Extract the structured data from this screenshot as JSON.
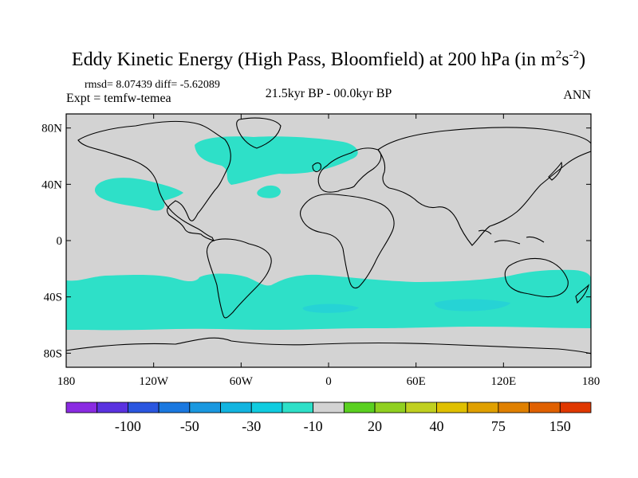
{
  "chart_data": {
    "type": "heatmap",
    "title": "Eddy Kinetic Energy (High Pass, Bloomfield) at 200 hPa (in m",
    "title_units_sup1": "2",
    "title_units_mid": "s",
    "title_units_sup2": "-2",
    "title_units_close": ")",
    "stats": "rmsd= 8.07439 diff= -5.62089",
    "experiment": "Expt = temfw-temea",
    "period": "21.5kyr BP - 00.0kyr BP",
    "season": "ANN",
    "x_ticks": [
      "180",
      "120W",
      "60W",
      "0",
      "60E",
      "120E",
      "180"
    ],
    "y_ticks": [
      "80N",
      "40N",
      "0",
      "40S",
      "80S"
    ],
    "xlim": [
      -180,
      180
    ],
    "ylim": [
      -90,
      90
    ],
    "colorbar": {
      "colors": [
        "#8a2be2",
        "#5a32e0",
        "#2a56e0",
        "#1a78e0",
        "#1a98e0",
        "#12b4e0",
        "#10cce0",
        "#2ee0c8",
        "#d3d3d3",
        "#5ad020",
        "#90d020",
        "#c0d020",
        "#e0c000",
        "#e0a000",
        "#e08000",
        "#e06000",
        "#e03800"
      ],
      "labels": [
        "-100",
        "-50",
        "-30",
        "-10",
        "20",
        "40",
        "75",
        "150"
      ]
    },
    "regions": [
      {
        "name": "north-atlantic-negative",
        "level": -10
      },
      {
        "name": "north-pacific-negative",
        "level": -10
      },
      {
        "name": "southern-ocean-band-negative",
        "level": -10
      },
      {
        "name": "south-atlantic-core",
        "level": -30
      },
      {
        "name": "south-indian-core",
        "level": -30
      }
    ],
    "background_level": 0
  }
}
